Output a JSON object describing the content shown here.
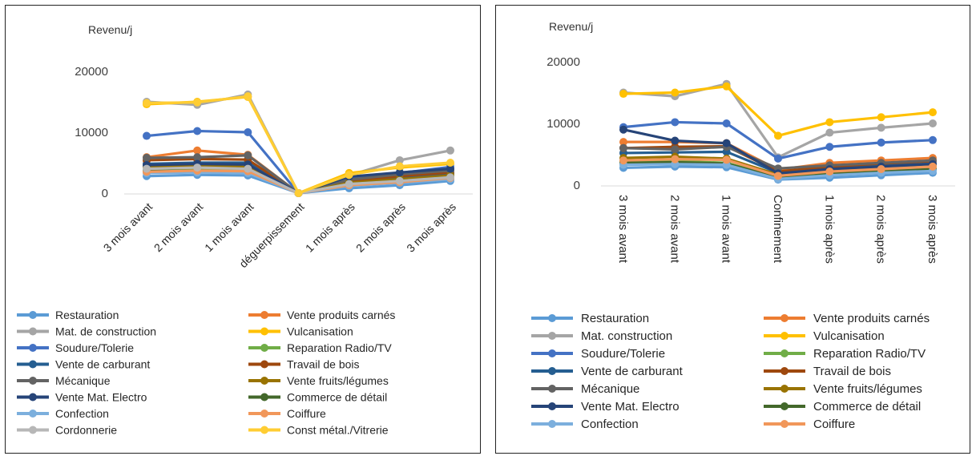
{
  "chart_data": [
    {
      "type": "line",
      "ylabel": "Revenu/j",
      "ylim": [
        0,
        20000
      ],
      "yticks": [
        0,
        10000,
        20000
      ],
      "grid": false,
      "legend_position": "bottom",
      "categories": [
        "3 mois avant",
        "2 mois avant",
        "1 mois avant",
        "déguerpissement",
        "1 mois après",
        "2 mois après",
        "3 mois après"
      ],
      "series": [
        {
          "name": "Restauration",
          "color": "#5b9bd5",
          "values": [
            2800,
            3000,
            2900,
            0,
            800,
            1300,
            2000
          ]
        },
        {
          "name": "Vente produits carnés",
          "color": "#ed7d31",
          "values": [
            5900,
            7000,
            6300,
            0,
            2600,
            3200,
            4000
          ]
        },
        {
          "name": "Mat. de construction",
          "color": "#a5a5a5",
          "values": [
            15000,
            14500,
            16200,
            0,
            2900,
            5400,
            7000
          ]
        },
        {
          "name": "Vulcanisation",
          "color": "#ffc000",
          "values": [
            14600,
            15000,
            15800,
            0,
            3300,
            4200,
            4800
          ]
        },
        {
          "name": "Soudure/Tolerie",
          "color": "#4472c4",
          "values": [
            9400,
            10200,
            10000,
            0,
            2300,
            3300,
            4300
          ]
        },
        {
          "name": "Reparation Radio/TV",
          "color": "#70ad47",
          "values": [
            3800,
            3900,
            3700,
            0,
            1400,
            1900,
            2400
          ]
        },
        {
          "name": "Vente de carburant",
          "color": "#255e91",
          "values": [
            4800,
            5000,
            5000,
            0,
            1900,
            2600,
            3200
          ]
        },
        {
          "name": "Travail de bois",
          "color": "#9e480e",
          "values": [
            5400,
            5600,
            5500,
            0,
            2000,
            2800,
            3400
          ]
        },
        {
          "name": "Mécanique",
          "color": "#636363",
          "values": [
            5800,
            5900,
            6200,
            0,
            2200,
            3100,
            3700
          ]
        },
        {
          "name": "Vente fruits/légumes",
          "color": "#997300",
          "values": [
            4300,
            4500,
            4300,
            0,
            1700,
            2300,
            2900
          ]
        },
        {
          "name": "Vente Mat. Electro",
          "color": "#264478",
          "values": [
            4600,
            4800,
            4700,
            0,
            2700,
            3400,
            4000
          ]
        },
        {
          "name": "Commerce de détail",
          "color": "#43682b",
          "values": [
            3600,
            3700,
            3500,
            0,
            1500,
            2000,
            2600
          ]
        },
        {
          "name": "Confection",
          "color": "#7cafdd",
          "values": [
            3300,
            3400,
            3300,
            0,
            1200,
            1700,
            2300
          ]
        },
        {
          "name": "Coiffure",
          "color": "#f1975a",
          "values": [
            3500,
            3700,
            3600,
            0,
            1300,
            1800,
            2500
          ]
        },
        {
          "name": "Cordonnerie",
          "color": "#b7b7b7",
          "values": [
            4000,
            4200,
            4000,
            0,
            1500,
            2000,
            2600
          ]
        },
        {
          "name": "Const métal./Vitrerie",
          "color": "#ffcd33",
          "values": [
            14800,
            14900,
            15900,
            0,
            3000,
            4400,
            5000
          ]
        }
      ]
    },
    {
      "type": "line",
      "ylabel": "Revenu/j",
      "ylim": [
        0,
        20000
      ],
      "yticks": [
        0,
        10000,
        20000
      ],
      "grid": false,
      "legend_position": "bottom",
      "categories": [
        "3 mois avant",
        "2 mois avant",
        "1 mois avant",
        "Confinement",
        "1 mois après",
        "2 mois après",
        "3 mois après"
      ],
      "series": [
        {
          "name": "Restauration",
          "color": "#5b9bd5",
          "values": [
            2800,
            3000,
            2900,
            900,
            1200,
            1600,
            2000
          ]
        },
        {
          "name": "Vente produits carnés",
          "color": "#ed7d31",
          "values": [
            7000,
            7000,
            6800,
            2500,
            3600,
            4000,
            4400
          ]
        },
        {
          "name": "Mat. construction",
          "color": "#a5a5a5",
          "values": [
            15000,
            14400,
            16400,
            4500,
            8500,
            9300,
            10000
          ]
        },
        {
          "name": "Vulcanisation",
          "color": "#ffc000",
          "values": [
            14800,
            15000,
            16000,
            8000,
            10200,
            11000,
            11800
          ]
        },
        {
          "name": "Soudure/Tolerie",
          "color": "#4472c4",
          "values": [
            9400,
            10200,
            10000,
            4300,
            6200,
            6900,
            7300
          ]
        },
        {
          "name": "Reparation Radio/TV",
          "color": "#70ad47",
          "values": [
            3800,
            3900,
            3600,
            1300,
            2100,
            2400,
            2700
          ]
        },
        {
          "name": "Vente de carburant",
          "color": "#255e91",
          "values": [
            5200,
            5300,
            5400,
            2000,
            2800,
            3200,
            3500
          ]
        },
        {
          "name": "Travail de bois",
          "color": "#9e480e",
          "values": [
            6000,
            6200,
            6300,
            2200,
            3000,
            3500,
            3900
          ]
        },
        {
          "name": "Mécanique",
          "color": "#636363",
          "values": [
            6000,
            5800,
            6200,
            2700,
            3200,
            3600,
            4000
          ]
        },
        {
          "name": "Vente fruits/légumes",
          "color": "#997300",
          "values": [
            4400,
            4600,
            4300,
            1700,
            2300,
            2700,
            3000
          ]
        },
        {
          "name": "Vente Mat. Electro",
          "color": "#264478",
          "values": [
            9000,
            7200,
            6800,
            1900,
            2600,
            3000,
            3400
          ]
        },
        {
          "name": "Commerce de détail",
          "color": "#43682b",
          "values": [
            3600,
            3700,
            3500,
            1200,
            1800,
            2200,
            2600
          ]
        },
        {
          "name": "Confection",
          "color": "#7cafdd",
          "values": [
            3300,
            3400,
            3300,
            1000,
            1600,
            2000,
            2300
          ]
        },
        {
          "name": "Coiffure",
          "color": "#f1975a",
          "values": [
            4000,
            4200,
            4100,
            1500,
            2200,
            2600,
            3000
          ]
        }
      ]
    }
  ]
}
